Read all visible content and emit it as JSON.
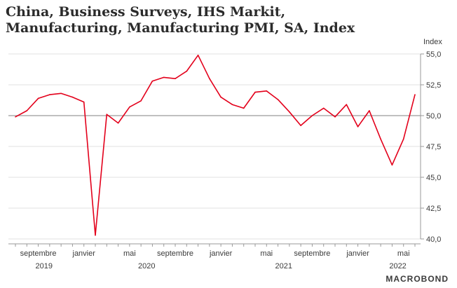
{
  "chart_data": {
    "type": "line",
    "title": "China, Business Surveys, IHS Markit, Manufacturing, Manufacturing PMI, SA, Index",
    "ylabel": "Index",
    "ylim": [
      40,
      55
    ],
    "yticks": [
      "55,0",
      "52,5",
      "50,0",
      "47,5",
      "45,0",
      "42,5",
      "40,0"
    ],
    "ytick_values": [
      55,
      52.5,
      50,
      47.5,
      45,
      42.5,
      40
    ],
    "reference_line": 50,
    "x_month_ticks": [
      {
        "label": "septembre",
        "index": 2
      },
      {
        "label": "janvier",
        "index": 6
      },
      {
        "label": "mai",
        "index": 10
      },
      {
        "label": "septembre",
        "index": 14
      },
      {
        "label": "janvier",
        "index": 18
      },
      {
        "label": "mai",
        "index": 22
      },
      {
        "label": "septembre",
        "index": 26
      },
      {
        "label": "janvier",
        "index": 30
      },
      {
        "label": "mai",
        "index": 34
      }
    ],
    "x_year_labels": [
      {
        "label": "2019",
        "index": 2.5
      },
      {
        "label": "2020",
        "index": 11.5
      },
      {
        "label": "2021",
        "index": 23.5
      },
      {
        "label": "2022",
        "index": 33.5
      }
    ],
    "series": [
      {
        "name": "Manufacturing PMI",
        "color": "#e3001b",
        "values": [
          49.9,
          50.4,
          51.4,
          51.7,
          51.8,
          51.5,
          51.1,
          40.3,
          50.1,
          49.4,
          50.7,
          51.2,
          52.8,
          53.1,
          53.0,
          53.6,
          54.9,
          53.0,
          51.5,
          50.9,
          50.6,
          51.9,
          52.0,
          51.3,
          50.3,
          49.2,
          50.0,
          50.6,
          49.9,
          50.9,
          49.1,
          50.4,
          48.1,
          46.0,
          48.1,
          51.7
        ]
      }
    ]
  },
  "branding": {
    "logo_text": "MACROBOND"
  }
}
